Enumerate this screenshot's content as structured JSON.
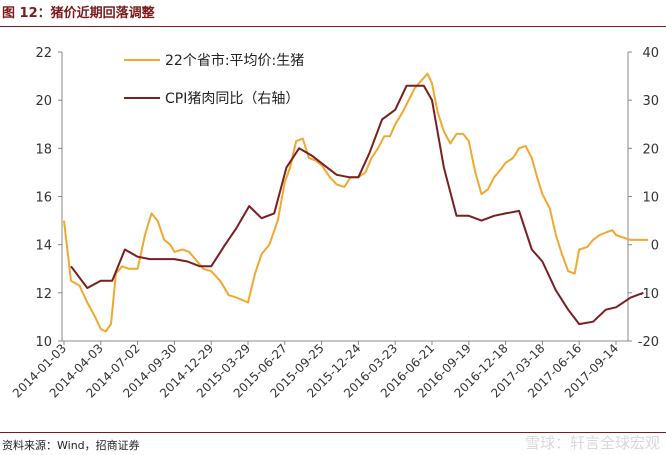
{
  "header": {
    "title": "图 12：猪价近期回落调整"
  },
  "footer": {
    "source": "资料来源：Wind，招商证券"
  },
  "watermark": {
    "text": "雪球：轩言全球宏观"
  },
  "colors": {
    "hog_price": "#f0a830",
    "cpi_pork": "#7a1e1e",
    "axis": "#888888",
    "title": "#7a1a1a"
  },
  "chart_data": {
    "type": "line",
    "x_tick_labels": [
      "2014-01-03",
      "2014-04-03",
      "2014-07-02",
      "2014-09-30",
      "2014-12-29",
      "2015-03-29",
      "2015-06-27",
      "2015-09-25",
      "2015-12-24",
      "2016-03-23",
      "2016-06-21",
      "2016-09-19",
      "2016-12-18",
      "2017-03-18",
      "2017-06-16",
      "2017-09-14"
    ],
    "y_left": {
      "min": 10,
      "max": 22,
      "ticks": [
        10,
        12,
        14,
        16,
        18,
        20,
        22
      ]
    },
    "y_right": {
      "min": -20,
      "max": 40,
      "ticks": [
        -20,
        -10,
        0,
        10,
        20,
        30,
        40
      ]
    },
    "legend_position": "top-left",
    "grid": false,
    "series": [
      {
        "name": "22个省市:平均价:生猪",
        "axis": "left",
        "color_key": "hog_price",
        "x": [
          "2014-01-03",
          "2014-01-20",
          "2014-02-10",
          "2014-03-01",
          "2014-03-20",
          "2014-04-03",
          "2014-04-15",
          "2014-04-28",
          "2014-05-10",
          "2014-05-25",
          "2014-06-10",
          "2014-07-02",
          "2014-07-20",
          "2014-08-05",
          "2014-08-20",
          "2014-09-05",
          "2014-09-20",
          "2014-09-30",
          "2014-10-20",
          "2014-11-05",
          "2014-11-25",
          "2014-12-10",
          "2014-12-29",
          "2015-01-20",
          "2015-02-10",
          "2015-03-01",
          "2015-03-29",
          "2015-04-15",
          "2015-05-01",
          "2015-05-20",
          "2015-06-10",
          "2015-06-27",
          "2015-07-10",
          "2015-07-25",
          "2015-08-10",
          "2015-08-25",
          "2015-09-10",
          "2015-09-25",
          "2015-10-15",
          "2015-11-01",
          "2015-11-20",
          "2015-12-05",
          "2015-12-24",
          "2016-01-10",
          "2016-01-25",
          "2016-02-10",
          "2016-02-25",
          "2016-03-10",
          "2016-03-23",
          "2016-04-10",
          "2016-04-25",
          "2016-05-10",
          "2016-05-25",
          "2016-06-10",
          "2016-06-21",
          "2016-07-05",
          "2016-07-20",
          "2016-08-05",
          "2016-08-20",
          "2016-09-05",
          "2016-09-19",
          "2016-10-05",
          "2016-10-20",
          "2016-11-05",
          "2016-11-20",
          "2016-12-05",
          "2016-12-18",
          "2017-01-05",
          "2017-01-20",
          "2017-02-05",
          "2017-02-20",
          "2017-03-05",
          "2017-03-18",
          "2017-04-05",
          "2017-04-20",
          "2017-05-05",
          "2017-05-20",
          "2017-06-05",
          "2017-06-16",
          "2017-07-05",
          "2017-07-20",
          "2017-08-05",
          "2017-08-20",
          "2017-09-05",
          "2017-09-14",
          "2017-10-01",
          "2017-10-20",
          "2017-11-10",
          "2017-12-01"
        ],
        "values": [
          15.0,
          12.5,
          12.3,
          11.6,
          11.0,
          10.5,
          10.4,
          10.7,
          12.8,
          13.1,
          13.0,
          13.0,
          14.4,
          15.3,
          15.0,
          14.2,
          14.0,
          13.7,
          13.8,
          13.7,
          13.3,
          13.0,
          12.9,
          12.5,
          11.9,
          11.8,
          11.6,
          12.8,
          13.6,
          14.0,
          15.0,
          16.6,
          17.2,
          18.3,
          18.4,
          17.6,
          17.5,
          17.3,
          16.8,
          16.5,
          16.4,
          16.8,
          16.8,
          17.0,
          17.6,
          18.0,
          18.5,
          18.5,
          19.0,
          19.5,
          20.0,
          20.5,
          20.8,
          21.1,
          20.7,
          19.5,
          18.7,
          18.2,
          18.6,
          18.6,
          18.3,
          17.0,
          16.1,
          16.3,
          16.8,
          17.1,
          17.4,
          17.6,
          18.0,
          18.1,
          17.6,
          16.8,
          16.1,
          15.5,
          14.4,
          13.6,
          12.9,
          12.8,
          13.8,
          13.9,
          14.2,
          14.4,
          14.5,
          14.6,
          14.4,
          14.3,
          14.2,
          14.2,
          14.2
        ]
      },
      {
        "name": "CPI猪肉同比（右轴）",
        "axis": "right",
        "color_key": "cpi_pork",
        "x": [
          "2014-01-20",
          "2014-03-01",
          "2014-04-03",
          "2014-05-01",
          "2014-06-01",
          "2014-07-02",
          "2014-08-01",
          "2014-09-01",
          "2014-09-30",
          "2014-11-01",
          "2014-12-01",
          "2014-12-29",
          "2015-02-01",
          "2015-03-01",
          "2015-04-01",
          "2015-05-01",
          "2015-06-01",
          "2015-07-01",
          "2015-08-01",
          "2015-09-01",
          "2015-10-01",
          "2015-11-01",
          "2015-12-01",
          "2015-12-24",
          "2016-01-20",
          "2016-02-20",
          "2016-03-23",
          "2016-04-20",
          "2016-05-10",
          "2016-06-01",
          "2016-06-21",
          "2016-07-20",
          "2016-08-20",
          "2016-09-19",
          "2016-10-20",
          "2016-11-20",
          "2016-12-18",
          "2017-01-20",
          "2017-02-20",
          "2017-03-18",
          "2017-04-20",
          "2017-05-20",
          "2017-06-16",
          "2017-07-20",
          "2017-08-20",
          "2017-09-14",
          "2017-10-20",
          "2017-11-20"
        ],
        "values": [
          -4.5,
          -9.0,
          -7.5,
          -7.5,
          -1.0,
          -2.5,
          -3.0,
          -3.0,
          -3.0,
          -3.5,
          -4.5,
          -4.5,
          0.0,
          3.5,
          8.0,
          5.5,
          6.5,
          16.0,
          20.0,
          18.5,
          16.5,
          14.5,
          14.0,
          14.0,
          19.0,
          26.0,
          28.0,
          33.0,
          33.0,
          33.0,
          30.0,
          16.0,
          6.0,
          6.0,
          5.0,
          6.0,
          6.5,
          7.0,
          -1.0,
          -3.5,
          -9.5,
          -13.5,
          -16.5,
          -16.0,
          -13.5,
          -13.0,
          -11.0,
          -10.0
        ]
      }
    ]
  }
}
